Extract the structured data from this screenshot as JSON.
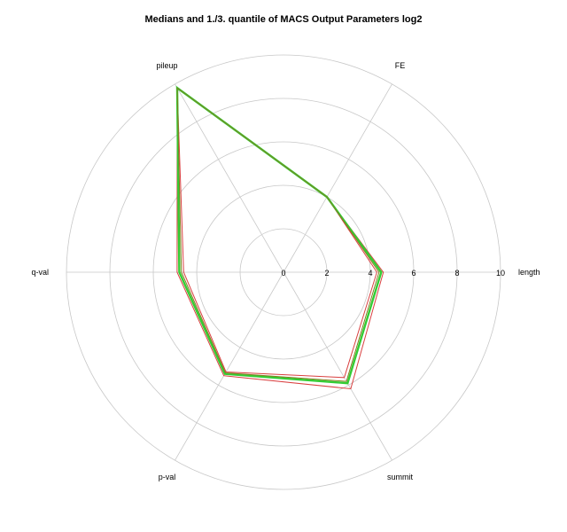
{
  "chart_data": {
    "type": "radar",
    "title": "Medians and 1./3. quantile of MACS Output Parameters log2",
    "axes": [
      "length",
      "FE",
      "pileup",
      "q-val",
      "p-val",
      "summit"
    ],
    "radial_range": [
      0,
      10
    ],
    "radial_ticks": [
      "0",
      "2",
      "4",
      "6",
      "8",
      "10"
    ],
    "grid": true,
    "series": [
      {
        "values": [
          4.3,
          4.0,
          9.8,
          4.6,
          5.3,
          5.6
        ],
        "color": "#d94040",
        "stroke": 1.0
      },
      {
        "values": [
          4.6,
          4.0,
          9.8,
          4.9,
          5.5,
          6.2
        ],
        "color": "#d94040",
        "stroke": 1.0
      },
      {
        "values": [
          4.5,
          4.0,
          9.8,
          4.8,
          5.4,
          5.9
        ],
        "color": "#33cc33",
        "stroke": 2.4
      },
      {
        "values": [
          4.4,
          4.0,
          9.8,
          4.7,
          5.35,
          5.8
        ],
        "color": "#808020",
        "stroke": 1.0
      }
    ]
  }
}
